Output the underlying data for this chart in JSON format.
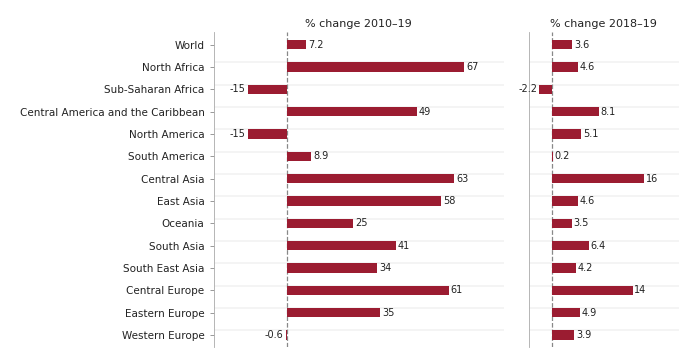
{
  "regions": [
    "Western Europe",
    "Eastern Europe",
    "Central Europe",
    "South East Asia",
    "South Asia",
    "Oceania",
    "East Asia",
    "Central Asia",
    "South America",
    "North America",
    "Central America and the Caribbean",
    "Sub-Saharan Africa",
    "North Africa",
    "World"
  ],
  "values_2010_19": [
    -0.6,
    35,
    61,
    34,
    41,
    25,
    58,
    63,
    8.9,
    -15,
    49,
    -15,
    67,
    7.2
  ],
  "values_2018_19": [
    3.9,
    4.9,
    14,
    4.2,
    6.4,
    3.5,
    4.6,
    16,
    0.2,
    5.1,
    8.1,
    -2.2,
    4.6,
    3.6
  ],
  "bar_color": "#9b1c31",
  "label_2010_19": "% change 2010–19",
  "label_2018_19": "% change 2018–19",
  "xlim_left": [
    -28,
    82
  ],
  "xlim_right": [
    -4,
    22
  ],
  "background_color": "#ffffff",
  "tick_color": "#555555",
  "label_fontsize": 7.5,
  "value_fontsize": 7.0,
  "bar_height": 0.42
}
